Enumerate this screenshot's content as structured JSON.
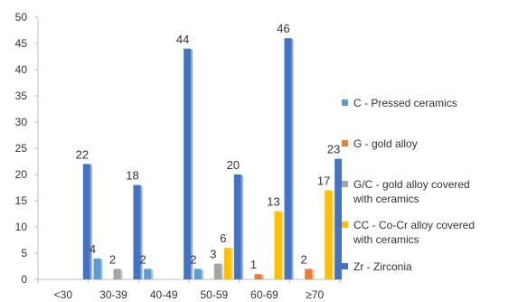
{
  "chart_data": {
    "type": "bar",
    "categories": [
      "<30",
      "30-39",
      "40-49",
      "50-59",
      "60-69",
      "≥70"
    ],
    "ylim": [
      0,
      50
    ],
    "yticks": [
      0,
      5,
      10,
      15,
      20,
      25,
      30,
      35,
      40,
      45,
      50
    ],
    "grid": false,
    "legend_position": "right",
    "series": [
      {
        "name": "C - Pressed ceramics",
        "color": "#5b9bd5",
        "values": [
          0,
          4,
          2,
          2,
          0,
          0
        ]
      },
      {
        "name": "G - gold alloy",
        "color": "#ed7d31",
        "values": [
          0,
          0,
          0,
          0,
          1,
          2
        ]
      },
      {
        "name": "G/C - gold alloy covered\nwith ceramics",
        "color": "#a5a5a5",
        "values": [
          0,
          2,
          0,
          3,
          0,
          0
        ]
      },
      {
        "name": "CC - Co-Cr alloy covered\nwith ceramics",
        "color": "#ffc000",
        "values": [
          0,
          0,
          0,
          6,
          13,
          17
        ]
      },
      {
        "name": "Zr - Zirconia",
        "color": "#4472c4",
        "values": [
          22,
          18,
          44,
          20,
          46,
          23
        ]
      }
    ]
  }
}
